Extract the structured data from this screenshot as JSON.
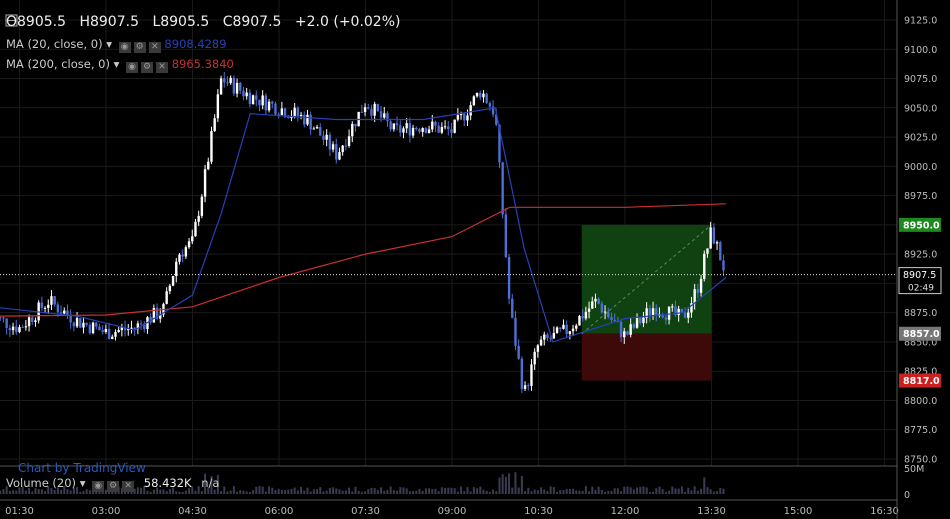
{
  "header": {
    "ohlc": {
      "o": "O8905.5",
      "h": "H8907.5",
      "l": "L8905.5",
      "c": "C8907.5",
      "chg": "+2.0 (+0.02%)"
    },
    "ma20": {
      "label": "MA (20, close, 0)",
      "value": "8908.4289",
      "color": "#2840b8"
    },
    "ma200": {
      "label": "MA (200, close, 0)",
      "value": "8965.3840",
      "color": "#c83030"
    }
  },
  "volume": {
    "label": "Volume (20)",
    "value": "58.432K",
    "extra": "n/a"
  },
  "watermark": "Chart by TradingView",
  "price_tags": {
    "target": {
      "text": "8950.0",
      "color": "#1e8a1e"
    },
    "current": {
      "text": "8907.5",
      "countdown": "02:49"
    },
    "entry": {
      "text": "8857.0",
      "color": "#777777"
    },
    "stop": {
      "text": "8817.0",
      "color": "#cc1f1f"
    }
  },
  "chart_data": {
    "type": "candlestick",
    "ylim": [
      8740,
      9130
    ],
    "y_ticks": [
      "9125.0",
      "9100.0",
      "9075.0",
      "9050.0",
      "9025.0",
      "9000.0",
      "8975.0",
      "8950.0",
      "8925.0",
      "8900.0",
      "8875.0",
      "8850.0",
      "8825.0",
      "8800.0",
      "8775.0",
      "8750.0"
    ],
    "x_ticks": [
      "01:30",
      "03:00",
      "04:30",
      "06:00",
      "07:30",
      "09:00",
      "10:30",
      "12:00",
      "13:30",
      "15:00",
      "16:30"
    ],
    "volume_ticks": [
      "50M",
      "0"
    ],
    "price_series": [
      {
        "t": "01:00",
        "p": 8872
      },
      {
        "t": "01:30",
        "p": 8862
      },
      {
        "t": "02:00",
        "p": 8885
      },
      {
        "t": "02:30",
        "p": 8868
      },
      {
        "t": "03:00",
        "p": 8858
      },
      {
        "t": "03:30",
        "p": 8862
      },
      {
        "t": "04:00",
        "p": 8878
      },
      {
        "t": "04:15",
        "p": 8925
      },
      {
        "t": "04:30",
        "p": 8935
      },
      {
        "t": "04:45",
        "p": 9000
      },
      {
        "t": "05:00",
        "p": 9075
      },
      {
        "t": "05:30",
        "p": 9060
      },
      {
        "t": "06:00",
        "p": 9050
      },
      {
        "t": "06:30",
        "p": 9040
      },
      {
        "t": "07:00",
        "p": 9010
      },
      {
        "t": "07:30",
        "p": 9055
      },
      {
        "t": "08:00",
        "p": 9030
      },
      {
        "t": "08:30",
        "p": 9035
      },
      {
        "t": "09:00",
        "p": 9030
      },
      {
        "t": "09:30",
        "p": 9065
      },
      {
        "t": "09:45",
        "p": 9045
      },
      {
        "t": "10:00",
        "p": 8880
      },
      {
        "t": "10:15",
        "p": 8805
      },
      {
        "t": "10:30",
        "p": 8848
      },
      {
        "t": "11:00",
        "p": 8860
      },
      {
        "t": "11:30",
        "p": 8885
      },
      {
        "t": "12:00",
        "p": 8855
      },
      {
        "t": "12:30",
        "p": 8880
      },
      {
        "t": "13:00",
        "p": 8870
      },
      {
        "t": "13:15",
        "p": 8895
      },
      {
        "t": "13:30",
        "p": 8945
      },
      {
        "t": "13:45",
        "p": 8908
      }
    ],
    "ma20_series": [
      {
        "t": "01:00",
        "p": 8880
      },
      {
        "t": "02:30",
        "p": 8872
      },
      {
        "t": "03:30",
        "p": 8860
      },
      {
        "t": "04:30",
        "p": 8890
      },
      {
        "t": "05:00",
        "p": 8960
      },
      {
        "t": "05:30",
        "p": 9045
      },
      {
        "t": "07:00",
        "p": 9040
      },
      {
        "t": "08:30",
        "p": 9040
      },
      {
        "t": "09:45",
        "p": 9050
      },
      {
        "t": "10:15",
        "p": 8930
      },
      {
        "t": "10:45",
        "p": 8850
      },
      {
        "t": "12:00",
        "p": 8870
      },
      {
        "t": "13:00",
        "p": 8875
      },
      {
        "t": "13:45",
        "p": 8905
      }
    ],
    "ma200_series": [
      {
        "t": "01:00",
        "p": 8872
      },
      {
        "t": "03:00",
        "p": 8873
      },
      {
        "t": "04:30",
        "p": 8880
      },
      {
        "t": "06:00",
        "p": 8905
      },
      {
        "t": "07:30",
        "p": 8925
      },
      {
        "t": "09:00",
        "p": 8940
      },
      {
        "t": "10:00",
        "p": 8965
      },
      {
        "t": "12:00",
        "p": 8965
      },
      {
        "t": "13:45",
        "p": 8968
      }
    ],
    "position": {
      "start": "11:15",
      "end": "13:30",
      "entry": 8857,
      "target": 8950,
      "stop": 8817
    },
    "colors": {
      "up": "#ffffff",
      "down": "#4e6fd6",
      "profit_zone": "#0f4210",
      "loss_zone": "#3d0909",
      "grid": "#1a1a1a"
    }
  }
}
